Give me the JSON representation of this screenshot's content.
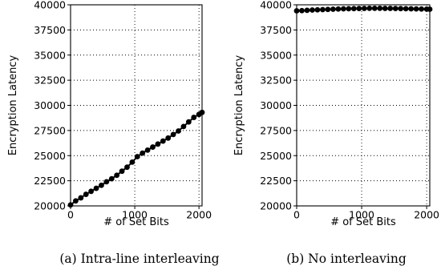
{
  "chart_data": [
    {
      "type": "line",
      "caption": "(a) Intra-line interleaving",
      "xlabel": "# of Set Bits",
      "ylabel": "Encryption Latency",
      "xlim": [
        0,
        2048
      ],
      "ylim": [
        20000,
        40000
      ],
      "xticks": [
        0,
        1000,
        2000
      ],
      "yticks": [
        20000,
        22500,
        25000,
        27500,
        30000,
        32500,
        35000,
        37500,
        40000
      ],
      "grid": true,
      "series": [
        {
          "color": "#000000",
          "x": [
            0,
            80,
            160,
            240,
            320,
            400,
            480,
            560,
            640,
            720,
            800,
            880,
            960,
            1040,
            1120,
            1200,
            1280,
            1360,
            1440,
            1520,
            1600,
            1680,
            1760,
            1840,
            1920,
            2000,
            2048
          ],
          "y": [
            20100,
            20500,
            20800,
            21150,
            21450,
            21750,
            22050,
            22400,
            22700,
            23050,
            23450,
            23850,
            24350,
            24900,
            25250,
            25550,
            25850,
            26150,
            26450,
            26750,
            27100,
            27450,
            27900,
            28350,
            28800,
            29100,
            29300
          ]
        }
      ]
    },
    {
      "type": "line",
      "caption": "(b) No interleaving",
      "xlabel": "# of Set Bits",
      "ylabel": "Encryption Latency",
      "xlim": [
        0,
        2048
      ],
      "ylim": [
        20000,
        40000
      ],
      "xticks": [
        0,
        1000,
        2000
      ],
      "yticks": [
        20000,
        22500,
        25000,
        27500,
        30000,
        32500,
        35000,
        37500,
        40000
      ],
      "grid": true,
      "series": [
        {
          "color": "#000000",
          "x": [
            0,
            80,
            160,
            240,
            320,
            400,
            480,
            560,
            640,
            720,
            800,
            880,
            960,
            1040,
            1120,
            1200,
            1280,
            1360,
            1440,
            1520,
            1600,
            1680,
            1760,
            1840,
            1920,
            2000,
            2048
          ],
          "y": [
            39400,
            39420,
            39450,
            39480,
            39500,
            39520,
            39540,
            39560,
            39580,
            39600,
            39610,
            39620,
            39630,
            39640,
            39650,
            39650,
            39650,
            39640,
            39640,
            39630,
            39620,
            39610,
            39600,
            39590,
            39580,
            39570,
            39560
          ]
        }
      ]
    }
  ]
}
